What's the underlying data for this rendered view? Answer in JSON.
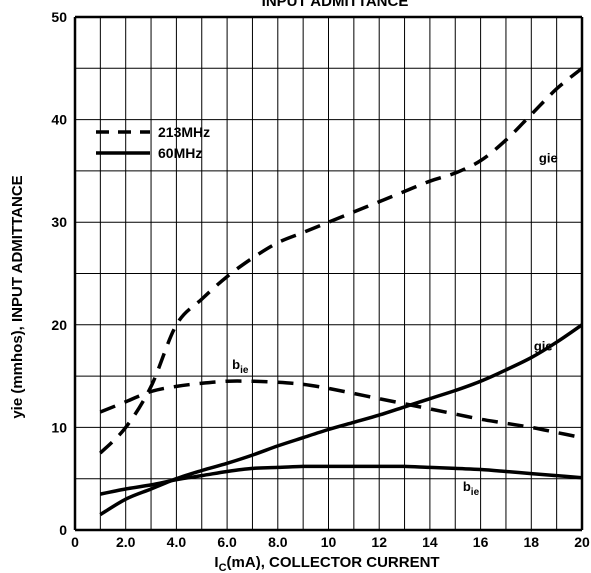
{
  "chart_data": {
    "type": "line",
    "title": "INPUT ADMITTANCE",
    "xlabel_main": "I",
    "xlabel_sub": "C",
    "xlabel_rest": "(mA), COLLECTOR CURRENT",
    "ylabel": "yie (mmhos), INPUT ADMITTANCE",
    "xlim": [
      0,
      20
    ],
    "ylim": [
      0,
      50
    ],
    "x_ticks": [
      "0",
      "2.0",
      "4.0",
      "6.0",
      "8.0",
      "10",
      "12",
      "14",
      "16",
      "18",
      "20"
    ],
    "y_ticks": [
      "0",
      "10",
      "20",
      "30",
      "40",
      "50"
    ],
    "grid": true,
    "legend_position": "top-left",
    "series": [
      {
        "name": "213MHz",
        "style": "dashed",
        "curves": [
          {
            "label": "gie",
            "points": [
              [
                1,
                7.5
              ],
              [
                2,
                10
              ],
              [
                3,
                14
              ],
              [
                4,
                20
              ],
              [
                5,
                22.5
              ],
              [
                6,
                24.7
              ],
              [
                7,
                26.5
              ],
              [
                8,
                28
              ],
              [
                9,
                29
              ],
              [
                10,
                30
              ],
              [
                11,
                31
              ],
              [
                12,
                32
              ],
              [
                13,
                33
              ],
              [
                14,
                34
              ],
              [
                15,
                34.8
              ],
              [
                16,
                36
              ],
              [
                17,
                38
              ],
              [
                18,
                40.5
              ],
              [
                19,
                43
              ],
              [
                20,
                45
              ]
            ]
          },
          {
            "label": "bie",
            "points": [
              [
                1,
                11.5
              ],
              [
                2,
                12.5
              ],
              [
                3,
                13.5
              ],
              [
                4,
                14
              ],
              [
                5,
                14.3
              ],
              [
                6,
                14.5
              ],
              [
                7,
                14.5
              ],
              [
                8,
                14.4
              ],
              [
                9,
                14.2
              ],
              [
                10,
                13.8
              ],
              [
                11,
                13.3
              ],
              [
                12,
                12.8
              ],
              [
                13,
                12.3
              ],
              [
                14,
                11.8
              ],
              [
                15,
                11.3
              ],
              [
                16,
                10.8
              ],
              [
                17,
                10.4
              ],
              [
                18,
                10
              ],
              [
                19,
                9.5
              ],
              [
                20,
                9
              ]
            ]
          }
        ]
      },
      {
        "name": "60MHz",
        "style": "solid",
        "curves": [
          {
            "label": "gie",
            "points": [
              [
                1,
                1.5
              ],
              [
                2,
                3
              ],
              [
                3,
                4
              ],
              [
                4,
                5
              ],
              [
                5,
                5.8
              ],
              [
                6,
                6.5
              ],
              [
                7,
                7.3
              ],
              [
                8,
                8.2
              ],
              [
                9,
                9
              ],
              [
                10,
                9.8
              ],
              [
                11,
                10.5
              ],
              [
                12,
                11.2
              ],
              [
                13,
                12
              ],
              [
                14,
                12.8
              ],
              [
                15,
                13.6
              ],
              [
                16,
                14.5
              ],
              [
                17,
                15.6
              ],
              [
                18,
                16.8
              ],
              [
                19,
                18.3
              ],
              [
                20,
                20
              ]
            ]
          },
          {
            "label": "bie",
            "points": [
              [
                1,
                3.5
              ],
              [
                2,
                4
              ],
              [
                3,
                4.4
              ],
              [
                4,
                4.9
              ],
              [
                5,
                5.3
              ],
              [
                6,
                5.7
              ],
              [
                7,
                6
              ],
              [
                8,
                6.1
              ],
              [
                9,
                6.2
              ],
              [
                10,
                6.2
              ],
              [
                11,
                6.2
              ],
              [
                12,
                6.2
              ],
              [
                13,
                6.2
              ],
              [
                14,
                6.1
              ],
              [
                15,
                6
              ],
              [
                16,
                5.9
              ],
              [
                17,
                5.7
              ],
              [
                18,
                5.5
              ],
              [
                19,
                5.3
              ],
              [
                20,
                5.1
              ]
            ]
          }
        ]
      }
    ],
    "annotations": [
      {
        "text": "gie",
        "x": 18.3,
        "y": 35.8
      },
      {
        "text": "gie",
        "x": 18.1,
        "y": 17.5
      },
      {
        "text": "b",
        "sub": "ie",
        "x": 6.2,
        "y": 15.7
      },
      {
        "text": "b",
        "sub": "ie",
        "x": 15.3,
        "y": 3.8
      }
    ]
  }
}
